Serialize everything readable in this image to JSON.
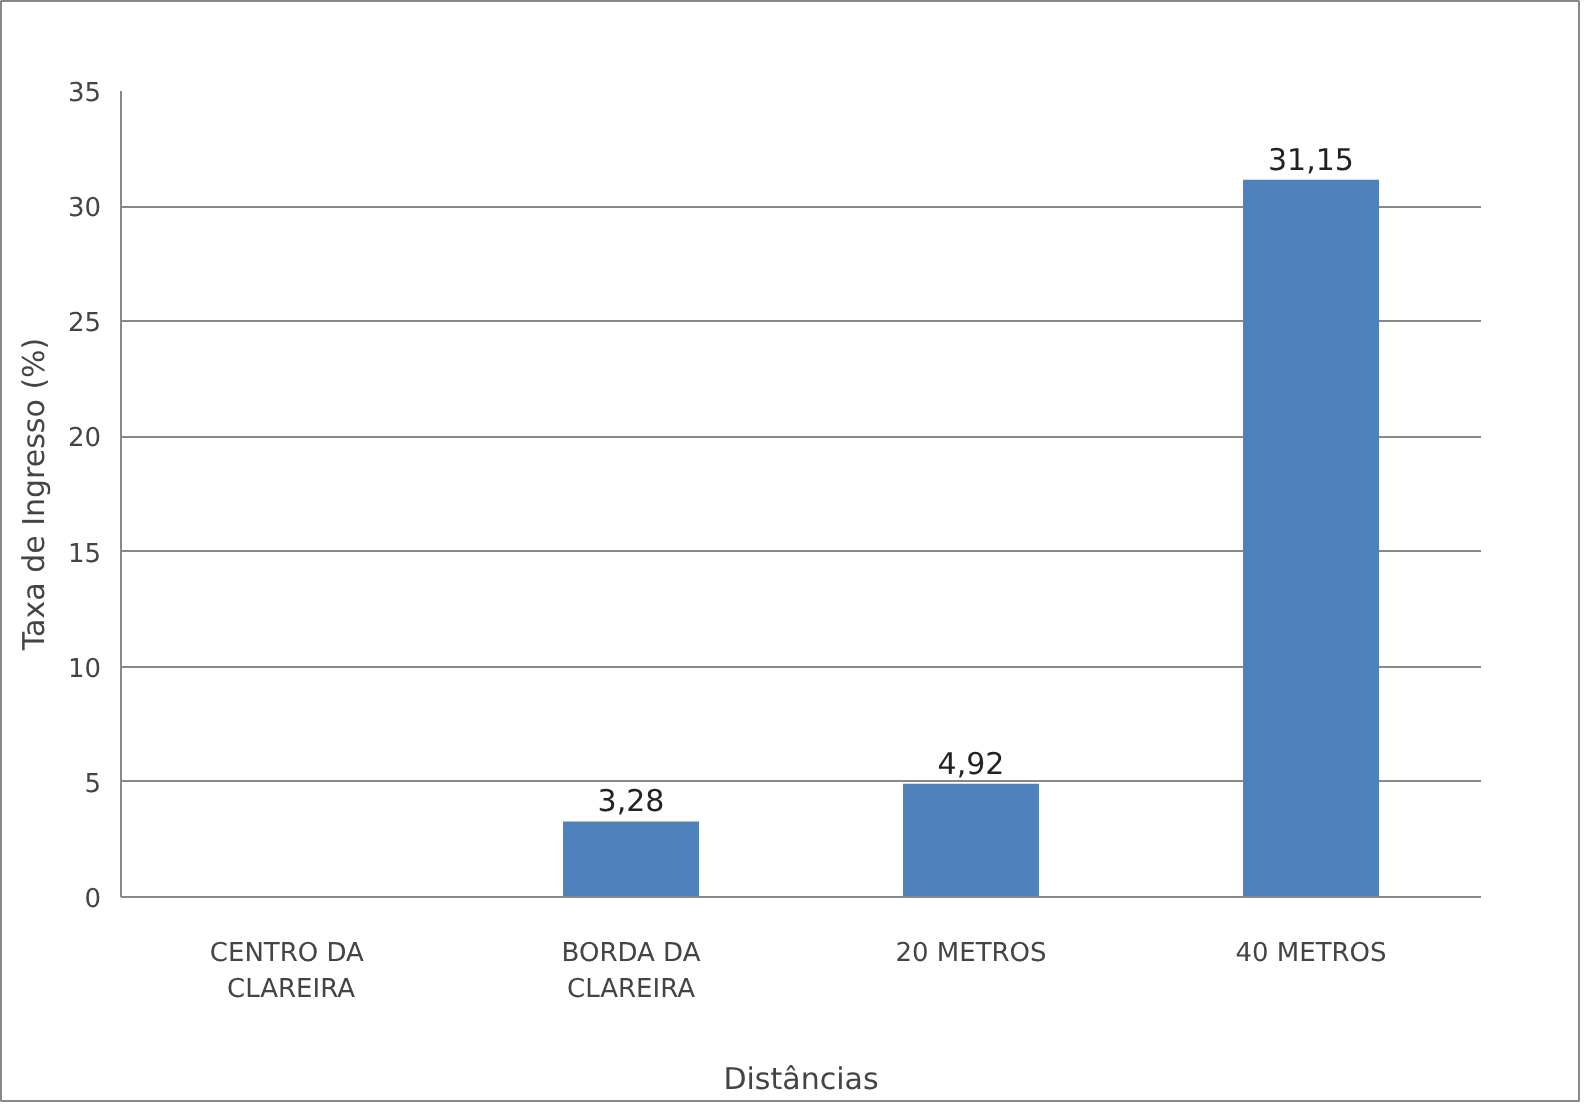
{
  "chart_data": {
    "type": "bar",
    "xlabel": "Distâncias",
    "ylabel": "Taxa de Ingresso (%)",
    "categories": [
      "CENTRO  DA\nCLAREIRA",
      "BORDA DA\nCLAREIRA",
      "20 METROS",
      "40 METROS"
    ],
    "values": [
      0,
      3.28,
      4.92,
      31.15
    ],
    "value_labels": [
      null,
      "3,28",
      "4,92",
      "31,15"
    ],
    "color": "#4f81bd",
    "ylim": [
      0,
      35
    ],
    "yticks": [
      0,
      5,
      10,
      15,
      20,
      25,
      30,
      35
    ],
    "grid": "y"
  }
}
